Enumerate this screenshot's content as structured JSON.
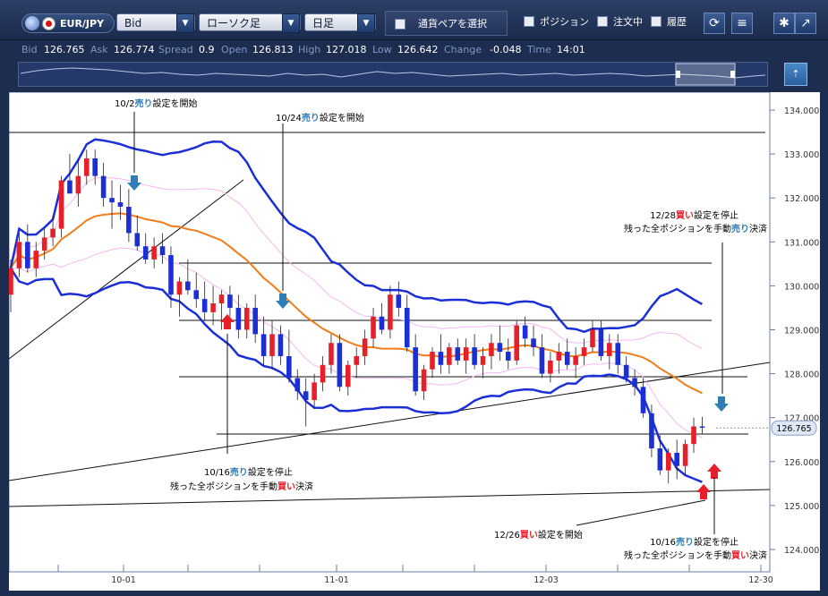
{
  "toolbar": {
    "pair": "EUR/JPY",
    "price_type": "Bid",
    "chart_type": "ローソク足",
    "period": "日足",
    "select_pair": "通貨ペアを選択",
    "chk_position": "ポジション",
    "chk_order": "注文中",
    "chk_history": "履歴"
  },
  "quotes": {
    "bid_label": "Bid",
    "bid": "126.765",
    "ask_label": "Ask",
    "ask": "126.774",
    "spread_label": "Spread",
    "spread": "0.9",
    "open_label": "Open",
    "open": "126.813",
    "high_label": "High",
    "high": "127.018",
    "low_label": "Low",
    "low": "126.642",
    "change_label": "Change",
    "change": "-0.048",
    "time_label": "Time",
    "time": "14:01"
  },
  "chart_data": {
    "type": "candlestick",
    "ylim": [
      123.8,
      134.4
    ],
    "yticks": [
      "124.000",
      "125.000",
      "126.000",
      "127.000",
      "128.000",
      "129.000",
      "130.000",
      "131.000",
      "132.000",
      "133.000",
      "134.000"
    ],
    "xticks": [
      "10-01",
      "11-01",
      "12-03",
      "12-30"
    ],
    "current_price": "126.765",
    "candles": [
      [
        129.8,
        130.6,
        129.4,
        130.4
      ],
      [
        130.4,
        131.2,
        130.2,
        131.0
      ],
      [
        131.0,
        131.4,
        130.3,
        130.4
      ],
      [
        130.4,
        131.0,
        130.2,
        130.8
      ],
      [
        130.8,
        131.3,
        130.6,
        131.1
      ],
      [
        131.1,
        131.6,
        130.9,
        131.3
      ],
      [
        131.3,
        132.5,
        131.1,
        132.4
      ],
      [
        132.4,
        133.0,
        132.1,
        132.1
      ],
      [
        132.1,
        132.9,
        131.8,
        132.5
      ],
      [
        132.5,
        133.1,
        132.3,
        132.9
      ],
      [
        132.9,
        133.1,
        132.3,
        132.5
      ],
      [
        132.5,
        132.8,
        131.8,
        132.0
      ],
      [
        132.0,
        132.4,
        131.3,
        131.9
      ],
      [
        131.9,
        132.3,
        131.5,
        131.8
      ],
      [
        131.8,
        132.2,
        131.0,
        131.2
      ],
      [
        131.2,
        131.6,
        130.8,
        130.9
      ],
      [
        130.9,
        131.2,
        130.5,
        130.6
      ],
      [
        130.6,
        131.1,
        130.4,
        130.9
      ],
      [
        130.9,
        131.2,
        130.5,
        130.7
      ],
      [
        130.7,
        130.9,
        129.5,
        129.8
      ],
      [
        129.8,
        130.2,
        129.3,
        130.1
      ],
      [
        130.1,
        130.6,
        129.8,
        129.9
      ],
      [
        129.9,
        130.3,
        129.5,
        129.7
      ],
      [
        129.7,
        130.1,
        129.2,
        129.4
      ],
      [
        129.4,
        130.0,
        129.1,
        129.6
      ],
      [
        129.6,
        129.9,
        129.0,
        129.8
      ],
      [
        129.8,
        130.0,
        129.3,
        129.5
      ],
      [
        129.5,
        129.8,
        128.8,
        129.0
      ],
      [
        129.0,
        129.6,
        128.8,
        129.5
      ],
      [
        129.5,
        129.8,
        128.7,
        128.9
      ],
      [
        128.9,
        129.3,
        128.2,
        128.4
      ],
      [
        128.4,
        129.2,
        128.1,
        128.9
      ],
      [
        128.9,
        129.1,
        128.2,
        128.4
      ],
      [
        128.4,
        129.0,
        127.8,
        127.9
      ],
      [
        127.9,
        128.1,
        127.4,
        127.6
      ],
      [
        127.6,
        127.9,
        126.8,
        127.4
      ],
      [
        127.4,
        128.0,
        127.2,
        127.8
      ],
      [
        127.8,
        128.4,
        127.6,
        128.2
      ],
      [
        128.2,
        128.9,
        128.0,
        128.7
      ],
      [
        128.7,
        128.9,
        127.6,
        127.7
      ],
      [
        127.7,
        128.3,
        127.5,
        128.2
      ],
      [
        128.2,
        128.6,
        127.9,
        128.4
      ],
      [
        128.4,
        129.0,
        128.2,
        128.8
      ],
      [
        128.8,
        129.5,
        128.6,
        129.3
      ],
      [
        129.3,
        129.6,
        128.9,
        129.0
      ],
      [
        129.0,
        130.0,
        128.8,
        129.8
      ],
      [
        129.8,
        130.1,
        129.3,
        129.5
      ],
      [
        129.5,
        129.8,
        128.5,
        128.6
      ],
      [
        128.6,
        128.9,
        127.5,
        127.6
      ],
      [
        127.6,
        128.2,
        127.4,
        128.1
      ],
      [
        128.1,
        128.6,
        127.9,
        128.5
      ],
      [
        128.5,
        128.9,
        128.0,
        128.2
      ],
      [
        128.2,
        128.7,
        128.0,
        128.6
      ],
      [
        128.6,
        128.8,
        128.2,
        128.3
      ],
      [
        128.3,
        128.8,
        128.0,
        128.6
      ],
      [
        128.6,
        128.9,
        128.1,
        128.2
      ],
      [
        128.2,
        128.6,
        127.9,
        128.4
      ],
      [
        128.4,
        128.9,
        128.1,
        128.7
      ],
      [
        128.7,
        129.1,
        128.3,
        128.5
      ],
      [
        128.5,
        128.8,
        128.1,
        128.3
      ],
      [
        128.3,
        129.2,
        128.2,
        129.1
      ],
      [
        129.1,
        129.3,
        128.6,
        128.8
      ],
      [
        128.8,
        129.1,
        128.4,
        128.6
      ],
      [
        128.6,
        128.9,
        127.9,
        128.0
      ],
      [
        128.0,
        128.5,
        127.8,
        128.3
      ],
      [
        128.3,
        128.7,
        128.0,
        128.5
      ],
      [
        128.5,
        128.8,
        128.1,
        128.2
      ],
      [
        128.2,
        128.6,
        127.9,
        128.4
      ],
      [
        128.4,
        128.8,
        128.2,
        128.6
      ],
      [
        128.6,
        129.2,
        128.5,
        129.0
      ],
      [
        129.0,
        129.2,
        128.3,
        128.4
      ],
      [
        128.4,
        128.9,
        128.1,
        128.7
      ],
      [
        128.7,
        128.9,
        128.0,
        128.2
      ],
      [
        128.2,
        128.4,
        127.8,
        127.9
      ],
      [
        127.9,
        128.1,
        127.5,
        127.7
      ],
      [
        127.7,
        127.9,
        127.0,
        127.1
      ],
      [
        127.1,
        127.3,
        126.1,
        126.3
      ],
      [
        126.3,
        126.6,
        125.7,
        125.8
      ],
      [
        125.8,
        126.3,
        125.5,
        126.2
      ],
      [
        126.2,
        126.5,
        125.6,
        125.9
      ],
      [
        125.9,
        126.5,
        125.7,
        126.4
      ],
      [
        126.4,
        127.0,
        126.2,
        126.8
      ],
      [
        126.8,
        127.02,
        126.64,
        126.77
      ]
    ]
  },
  "annotations": {
    "a1": "10/2",
    "a1_sell": "売り",
    "a1_rest": "設定を開始",
    "a2": "10/24",
    "a2_sell": "売り",
    "a2_rest": "設定を開始",
    "a3": "12/28",
    "a3_buy": "買い",
    "a3_rest": "設定を停止",
    "a3_line2a": "残った全ポジションを手動",
    "a3_line2b": "売り",
    "a3_line2c": "決済",
    "a4": "10/16",
    "a4_sell": "売り",
    "a4_rest": "設定を停止",
    "a4_line2a": "残った全ポジションを手動",
    "a4_line2b": "買い",
    "a4_line2c": "決済",
    "a5": "12/26",
    "a5_buy": "買い",
    "a5_rest": "設定を開始",
    "a6": "10/16",
    "a6_sell": "売り",
    "a6_rest": "設定を停止",
    "a6_line2a": "残った全ポジションを手動",
    "a6_line2b": "買い",
    "a6_line2c": "決済"
  },
  "colors": {
    "sell": "#2e7db5",
    "buy": "#e5202a",
    "bullish": "#e5202a",
    "bearish": "#1c2fd6"
  }
}
